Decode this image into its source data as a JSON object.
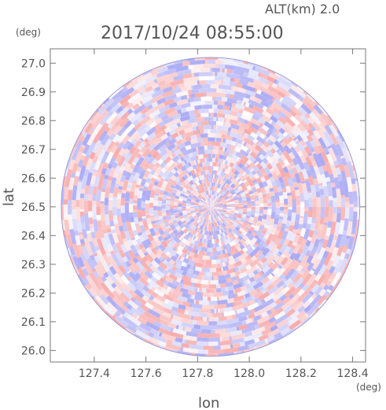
{
  "chart_data": {
    "type": "heatmap",
    "title": "2017/10/24 08:55:00",
    "altitude_label": "ALT(km) 2.0",
    "xlabel": "lon",
    "ylabel": "lat",
    "x_unit": "(deg)",
    "y_unit": "(deg)",
    "xlim": [
      127.23,
      128.45
    ],
    "ylim": [
      25.96,
      27.05
    ],
    "x_ticks": [
      127.4,
      127.6,
      127.8,
      128.0,
      128.2,
      128.4
    ],
    "x_tick_labels": [
      "127.4",
      "127.6",
      "127.8",
      "128.0",
      "128.2",
      "128.4"
    ],
    "y_ticks": [
      26.0,
      26.1,
      26.2,
      26.3,
      26.4,
      26.5,
      26.6,
      26.7,
      26.8,
      26.9,
      27.0
    ],
    "y_tick_labels": [
      "26.0",
      "26.1",
      "26.2",
      "26.3",
      "26.4",
      "26.5",
      "26.6",
      "26.7",
      "26.8",
      "26.9",
      "27.0"
    ],
    "center": {
      "lon": 127.85,
      "lat": 26.5
    },
    "range_lat_extent": 0.52,
    "colormap": {
      "negative": "#a6a6f4",
      "neutral": "#ffffff",
      "positive": "#f7a8a8"
    },
    "grid": false,
    "legend": "none"
  }
}
